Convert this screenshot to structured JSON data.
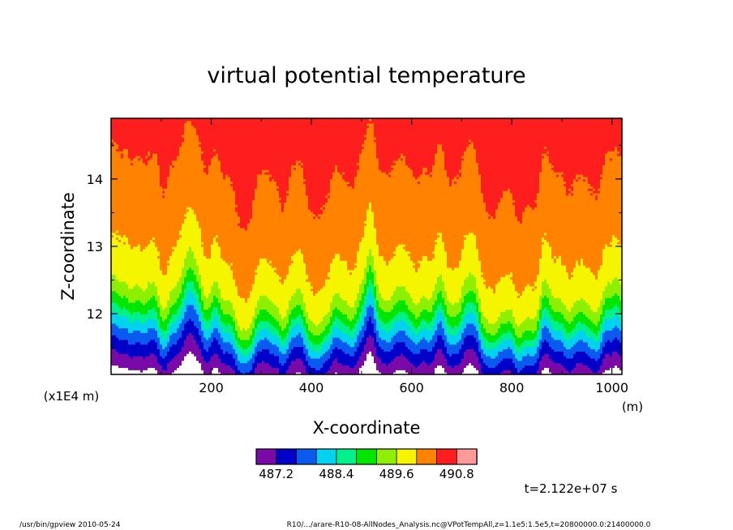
{
  "chart_data": {
    "type": "heatmap",
    "title": "virtual potential temperature",
    "xlabel": "X-coordinate",
    "ylabel": "Z-coordinate",
    "x_unit": "(m)",
    "y_unit": "(x1E4 m)",
    "xlim": [
      0,
      1020
    ],
    "ylim": [
      11.1,
      14.9
    ],
    "x_ticks": [
      200,
      400,
      600,
      800,
      1000
    ],
    "y_ticks": [
      12,
      13,
      14
    ],
    "colorbar": {
      "colors": [
        "#7a0aa8",
        "#0000c8",
        "#0a5af0",
        "#00d2f0",
        "#00f08c",
        "#00e600",
        "#8cf000",
        "#f5f500",
        "#ff8200",
        "#ff1e1e",
        "#ff9a9a"
      ],
      "labels": [
        "487.2",
        "488.4",
        "489.6",
        "490.8"
      ],
      "levels": [
        486.8,
        487.2,
        487.6,
        488.0,
        488.4,
        488.8,
        489.2,
        489.6,
        490.0,
        490.4,
        490.8,
        491.2
      ],
      "label_positions": [
        1,
        4,
        7,
        10
      ]
    },
    "field_description": {
      "profile_z": [
        11.15,
        11.35,
        11.55,
        11.7,
        11.85,
        12.0,
        12.2,
        12.5,
        13.0,
        14.2,
        14.9
      ],
      "profile_theta": [
        487.0,
        487.4,
        487.9,
        488.3,
        488.8,
        489.2,
        489.6,
        489.9,
        490.1,
        490.45,
        490.6
      ]
    }
  },
  "time_label": "t=2.122e+07 s",
  "footer": {
    "left": "/usr/bin/gpview   2010-05-24",
    "right": "R10/.../arare-R10-08-AllNodes_Analysis.nc@VPotTempAll,z=1.1e5:1.5e5,t=20800000.0:21400000.0"
  }
}
